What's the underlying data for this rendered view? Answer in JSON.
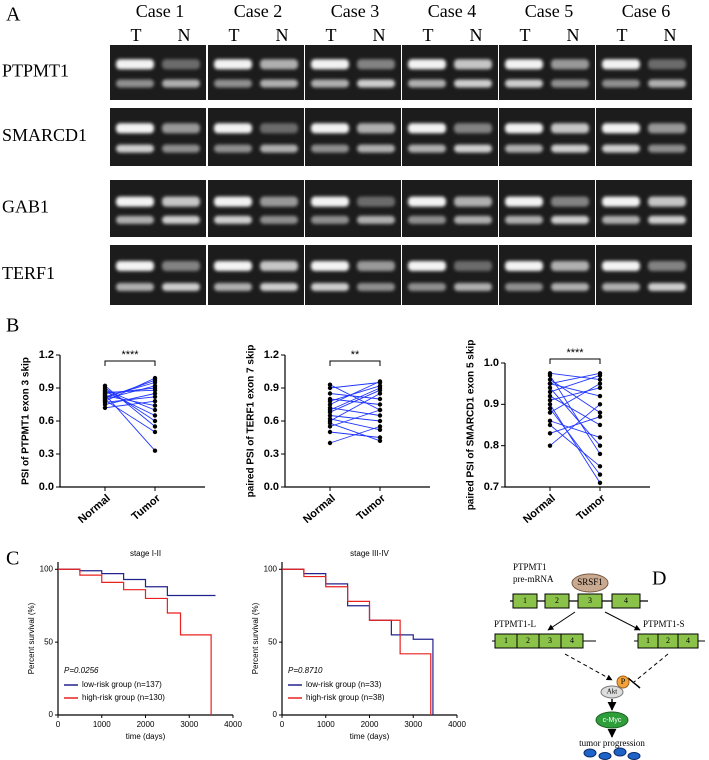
{
  "panel_a": {
    "label": "A",
    "cases": [
      "Case 1",
      "Case 2",
      "Case 3",
      "Case 4",
      "Case 5",
      "Case 6"
    ],
    "lanes": [
      "T",
      "N"
    ],
    "genes": [
      "PTPMT1",
      "SMARCD1",
      "GAB1",
      "TERF1"
    ]
  },
  "panel_b": {
    "label": "B"
  },
  "panel_c": {
    "label": "C"
  },
  "chart_data": [
    {
      "type": "paired",
      "ylabel": "PSI of PTPMT1 exon 3 skip",
      "categories": [
        "Normal",
        "Tumor"
      ],
      "significance": "****",
      "color": "#1f35ff",
      "ylim": [
        0,
        1.2
      ],
      "yticks": [
        {
          "value": 0,
          "label": "0.0"
        },
        0.3,
        0.6,
        0.9,
        1.2
      ],
      "normal": [
        0.78,
        0.82,
        0.85,
        0.88,
        0.9,
        0.92,
        0.8,
        0.75,
        0.72,
        0.84,
        0.86,
        0.79,
        0.81,
        0.87,
        0.77,
        0.83
      ],
      "tumor": [
        0.99,
        0.95,
        0.9,
        0.7,
        0.6,
        0.55,
        0.92,
        0.85,
        0.78,
        0.33,
        0.88,
        0.5,
        0.97,
        0.65,
        0.82,
        0.74
      ]
    },
    {
      "type": "paired",
      "ylabel": "paired PSI of TERF1 exon 7 skip",
      "categories": [
        "Normal",
        "Tumor"
      ],
      "significance": "**",
      "color": "#1f35ff",
      "ylim": [
        0,
        1.2
      ],
      "yticks": [
        {
          "value": 0,
          "label": "0.0"
        },
        0.3,
        0.6,
        0.9,
        1.2
      ],
      "normal": [
        0.4,
        0.5,
        0.55,
        0.6,
        0.65,
        0.7,
        0.72,
        0.75,
        0.8,
        0.85,
        0.9,
        0.93,
        0.58,
        0.68,
        0.78,
        0.62
      ],
      "tumor": [
        0.55,
        0.45,
        0.7,
        0.85,
        0.6,
        0.9,
        0.65,
        0.96,
        0.75,
        0.8,
        0.95,
        0.7,
        0.42,
        0.88,
        0.92,
        0.52
      ]
    },
    {
      "type": "paired",
      "ylabel": "paired PSI of SMARCD1 exon 5 skip",
      "categories": [
        "Normal",
        "Tumor"
      ],
      "significance": "****",
      "color": "#1f35ff",
      "ylim": [
        0.7,
        1.0
      ],
      "yticks": [
        0.7,
        0.8,
        0.9,
        {
          "value": 1.0,
          "label": "1.0"
        }
      ],
      "normal": [
        0.8,
        0.85,
        0.88,
        0.9,
        0.92,
        0.93,
        0.94,
        0.95,
        0.96,
        0.97,
        0.975,
        0.89,
        0.91,
        0.86,
        0.95,
        0.83
      ],
      "tumor": [
        0.9,
        0.75,
        0.95,
        0.71,
        0.85,
        0.97,
        0.8,
        0.92,
        0.88,
        0.78,
        0.96,
        0.73,
        0.94,
        0.82,
        0.975,
        0.87
      ]
    },
    {
      "type": "step",
      "title": "stage I-II",
      "xlabel": "time (days)",
      "ylabel": "Percent survival (%)",
      "p_value": "P=0.0256",
      "xlim": [
        0,
        4000
      ],
      "xticks": [
        0,
        1000,
        2000,
        3000,
        4000
      ],
      "ylim": [
        0,
        105
      ],
      "yticks": [
        0,
        50,
        100
      ],
      "series": [
        {
          "name": "low-risk group (n=137)",
          "color": "#23238e",
          "x": [
            0,
            500,
            1000,
            1500,
            2000,
            2500,
            3600
          ],
          "values": [
            100,
            99,
            97,
            93,
            88,
            82,
            82
          ]
        },
        {
          "name": "high-risk group (n=130)",
          "color": "#e8221e",
          "x": [
            0,
            500,
            1000,
            1500,
            2000,
            2500,
            2800,
            3500
          ],
          "values": [
            100,
            96,
            91,
            86,
            80,
            70,
            55,
            0
          ]
        }
      ]
    },
    {
      "type": "step",
      "title": "stage III-IV",
      "xlabel": "time (days)",
      "ylabel": "Percent survival (%)",
      "p_value": "P=0.8710",
      "xlim": [
        0,
        4000
      ],
      "xticks": [
        0,
        1000,
        2000,
        3000,
        4000
      ],
      "ylim": [
        0,
        105
      ],
      "yticks": [
        0,
        50,
        100
      ],
      "series": [
        {
          "name": "low-risk group (n=33)",
          "color": "#23238e",
          "x": [
            0,
            500,
            1000,
            1500,
            2000,
            2500,
            3000,
            3450
          ],
          "values": [
            100,
            97,
            90,
            75,
            65,
            55,
            52,
            0
          ]
        },
        {
          "name": "high-risk group (n=38)",
          "color": "#e8221e",
          "x": [
            0,
            500,
            1000,
            1500,
            2000,
            2700,
            3400
          ],
          "values": [
            100,
            95,
            88,
            78,
            65,
            42,
            0
          ]
        }
      ]
    }
  ],
  "panel_d": {
    "label": "D",
    "gene": "PTPMT1",
    "premrna": "pre-mRNA",
    "factor": "SRSF1",
    "exons": [
      "1",
      "2",
      "3",
      "4"
    ],
    "isoform_l": "PTPMT1-L",
    "isoform_l_exons": [
      "1",
      "2",
      "3",
      "4"
    ],
    "isoform_s": "PTPMT1-S",
    "isoform_s_exons": [
      "1",
      "2",
      "4"
    ],
    "phospho": "P",
    "akt": "Akt",
    "myc": "c-Myc",
    "outcome": "tumor progression"
  }
}
